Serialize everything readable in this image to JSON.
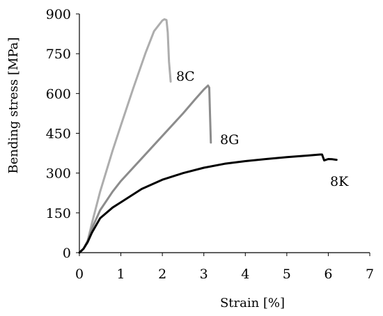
{
  "chart_data": {
    "type": "line",
    "xlabel": "Strain [%]",
    "ylabel": "Bending stress [MPa]",
    "xlim": [
      0,
      7
    ],
    "ylim": [
      0,
      900
    ],
    "xticks": [
      0,
      1,
      2,
      3,
      4,
      5,
      6,
      7
    ],
    "yticks": [
      0,
      150,
      300,
      450,
      600,
      750,
      900
    ],
    "grid": false,
    "legend": "none; series labels placed next to curves",
    "series": [
      {
        "name": "8C",
        "color": "#adadad",
        "x": [
          0,
          0.1,
          0.2,
          0.3,
          0.5,
          0.8,
          1.0,
          1.3,
          1.6,
          1.8,
          2.0,
          2.05,
          2.1,
          2.13,
          2.16,
          2.2
        ],
        "y": [
          0,
          15,
          45,
          110,
          230,
          385,
          480,
          620,
          755,
          835,
          875,
          880,
          877,
          830,
          720,
          645
        ]
      },
      {
        "name": "8G",
        "color": "#8c8c8c",
        "x": [
          0,
          0.1,
          0.2,
          0.3,
          0.5,
          0.8,
          1.0,
          1.5,
          2.0,
          2.5,
          2.8,
          3.0,
          3.1,
          3.13,
          3.15,
          3.17
        ],
        "y": [
          0,
          15,
          45,
          90,
          160,
          230,
          270,
          355,
          440,
          525,
          580,
          615,
          630,
          622,
          520,
          415
        ]
      },
      {
        "name": "8K",
        "color": "#000000",
        "x": [
          0,
          0.1,
          0.2,
          0.3,
          0.5,
          0.8,
          1.0,
          1.5,
          2.0,
          2.5,
          3.0,
          3.5,
          4.0,
          4.5,
          5.0,
          5.5,
          5.8,
          5.85,
          5.9,
          6.0,
          6.1,
          6.2
        ],
        "y": [
          0,
          15,
          40,
          75,
          130,
          170,
          190,
          240,
          275,
          300,
          320,
          335,
          345,
          353,
          360,
          366,
          370,
          370,
          348,
          353,
          352,
          350
        ]
      }
    ]
  }
}
